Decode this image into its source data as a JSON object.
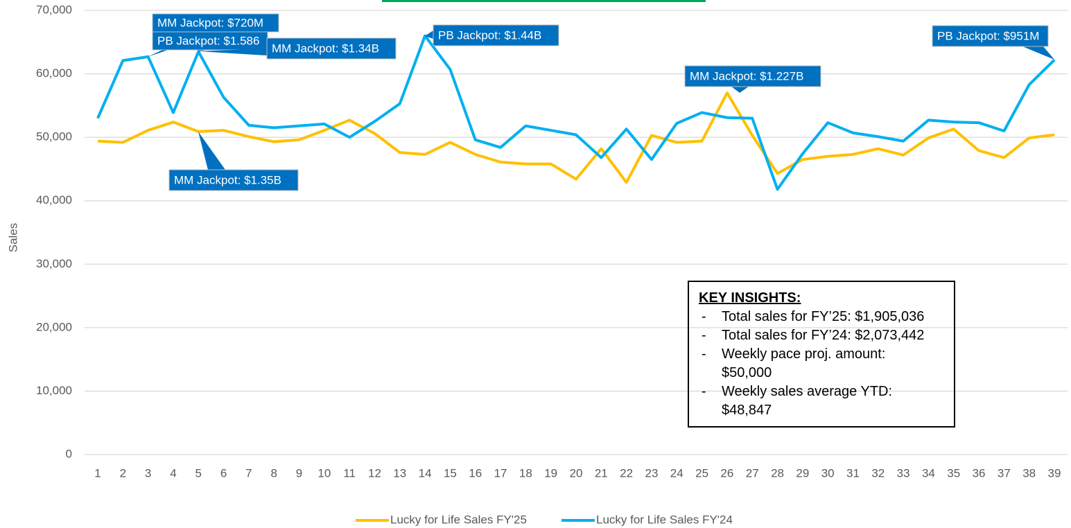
{
  "chart_data": {
    "type": "line",
    "y_label": "Sales",
    "categories": [
      1,
      2,
      3,
      4,
      5,
      6,
      7,
      8,
      9,
      10,
      11,
      12,
      13,
      14,
      15,
      16,
      17,
      18,
      19,
      20,
      21,
      22,
      23,
      24,
      25,
      26,
      27,
      28,
      29,
      30,
      31,
      32,
      33,
      34,
      35,
      36,
      37,
      38,
      39
    ],
    "series": [
      {
        "name": "Lucky for Life Sales FY'25",
        "color": "#ffc000",
        "values": [
          49400,
          49200,
          51100,
          52400,
          50900,
          51100,
          50100,
          49300,
          49600,
          51100,
          52700,
          50600,
          47600,
          47300,
          49200,
          47300,
          46100,
          45800,
          45800,
          43400,
          48200,
          42900,
          50300,
          49200,
          49400,
          57000,
          50300,
          44300,
          46500,
          47000,
          47300,
          48200,
          47200,
          49900,
          51300,
          47900,
          46800,
          49900,
          50400
        ]
      },
      {
        "name": "Lucky for Life Sales FY'24",
        "color": "#00b0f0",
        "values": [
          53000,
          62100,
          62700,
          53900,
          63500,
          56300,
          51900,
          51500,
          51800,
          52100,
          50000,
          52500,
          55300,
          66000,
          60700,
          49600,
          48400,
          51800,
          51100,
          50400,
          46800,
          51300,
          46500,
          52200,
          53900,
          53100,
          53000,
          41800,
          47400,
          52300,
          50700,
          50100,
          49400,
          52700,
          52400,
          52300,
          51000,
          58300,
          62200
        ]
      }
    ],
    "ylim": [
      0,
      70000
    ],
    "yticks": [
      0,
      {
        "value": 10000,
        "label": "10,000"
      },
      {
        "value": 20000,
        "label": "20,000"
      },
      {
        "value": 30000,
        "label": "30,000"
      },
      {
        "value": 40000,
        "label": "40,000"
      },
      {
        "value": 50000,
        "label": "50,000"
      },
      {
        "value": 60000,
        "label": "60,000"
      },
      {
        "value": 70000,
        "label": "70,000"
      }
    ],
    "grid": true,
    "legend": "bottom",
    "annotations": [
      "MM Jackpot: $720M",
      "PB Jackpot: $1.586",
      "MM Jackpot: $1.34B",
      "PB Jackpot: $1.44B",
      "MM Jackpot: $1.227B",
      "PB Jackpot: $951M",
      "MM Jackpot: $1.35B"
    ],
    "insights": {
      "title": "KEY INSIGHTS:",
      "items": [
        "Total sales for FY’25: $1,905,036",
        "Total sales for FY’24: $2,073,442",
        "Weekly pace proj. amount: $50,000",
        "Weekly sales average YTD: $48,847"
      ]
    }
  }
}
